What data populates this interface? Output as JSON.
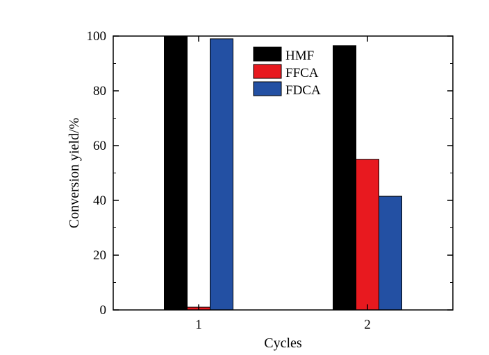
{
  "chart_data": {
    "type": "bar",
    "title": "",
    "xlabel": "Cycles",
    "ylabel": "Conversion yield/%",
    "categories": [
      "1",
      "2"
    ],
    "ylim": [
      0,
      100
    ],
    "yticks": [
      "0",
      "20",
      "40",
      "60",
      "80",
      "100"
    ],
    "grid": false,
    "legend_position": "top-center",
    "series": [
      {
        "name": "HMF",
        "color": "#000000",
        "values": [
          100,
          96.5
        ]
      },
      {
        "name": "FFCA",
        "color": "#e8191f",
        "values": [
          1,
          55
        ]
      },
      {
        "name": "FDCA",
        "color": "#2350a3",
        "values": [
          99,
          41.5
        ]
      }
    ]
  }
}
